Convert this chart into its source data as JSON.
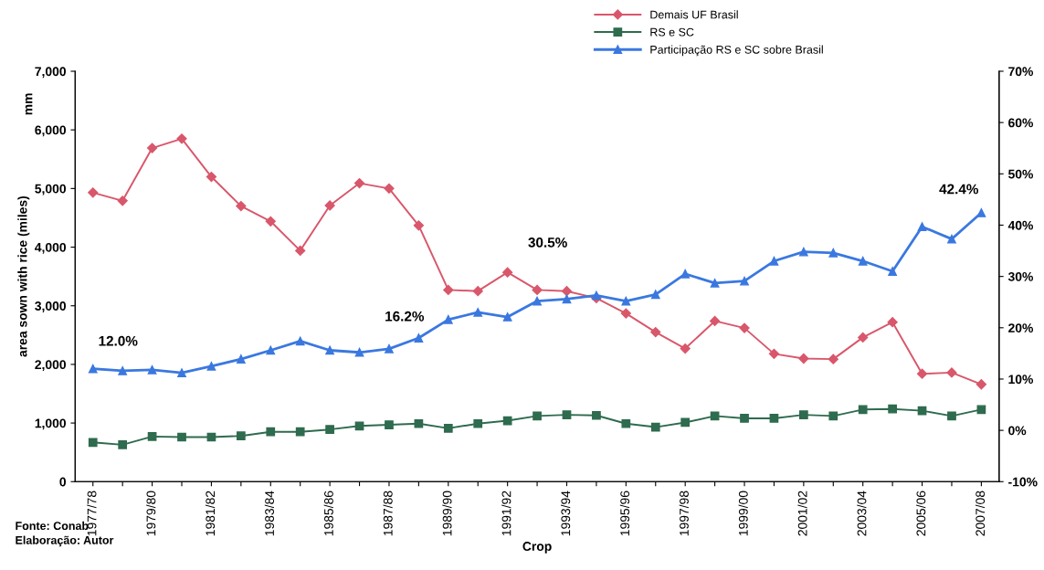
{
  "chart_data": {
    "type": "line",
    "xlabel": "Crop",
    "ylabel": "area sown with rice (miles)",
    "categories": [
      "1977/78",
      null,
      "1979/80",
      null,
      "1981/82",
      null,
      "1983/84",
      null,
      "1985/86",
      null,
      "1987/88",
      null,
      "1989/90",
      null,
      "1991/92",
      null,
      "1993/94",
      null,
      "1995/96",
      null,
      "1997/98",
      null,
      "1999/00",
      null,
      "2001/02",
      null,
      "2003/04",
      null,
      "2005/06",
      null,
      "2007/08"
    ],
    "series": [
      {
        "name": "Demais UF Brasil",
        "color": "#d9576b",
        "marker": "diamond",
        "values": [
          4930,
          4790,
          5690,
          5850,
          5200,
          4700,
          4440,
          3940,
          4710,
          5090,
          5000,
          4370,
          3270,
          3250,
          3570,
          3270,
          3250,
          3130,
          2870,
          2550,
          2270,
          2740,
          2620,
          2180,
          2100,
          2090,
          2460,
          2720,
          1840,
          1860,
          1660
        ]
      },
      {
        "name": "RS e SC",
        "color": "#2e6b4f",
        "marker": "square",
        "values": [
          670,
          630,
          770,
          760,
          760,
          780,
          850,
          850,
          890,
          950,
          970,
          990,
          910,
          990,
          1040,
          1120,
          1140,
          1130,
          990,
          930,
          1010,
          1120,
          1080,
          1080,
          1140,
          1120,
          1230,
          1240,
          1210,
          1120,
          1230
        ]
      },
      {
        "name": "Participação RS e SC sobre Brasil",
        "color": "#3a78e0",
        "marker": "triangle",
        "axis": "y2",
        "values": [
          12.0,
          11.6,
          11.8,
          11.2,
          12.5,
          13.9,
          15.6,
          17.4,
          15.6,
          15.2,
          15.9,
          18.0,
          21.6,
          23.0,
          22.1,
          25.2,
          25.6,
          26.3,
          25.2,
          26.5,
          30.5,
          28.7,
          29.1,
          33.0,
          34.8,
          34.6,
          33.0,
          31.0,
          39.7,
          37.3,
          42.4
        ]
      }
    ],
    "ylim": [
      0,
      7000
    ],
    "yticks": [
      0,
      {
        "value": 1000,
        "label": "1,000"
      },
      {
        "value": 2000,
        "label": "2,000"
      },
      {
        "value": 3000,
        "label": "3,000"
      },
      {
        "value": 4000,
        "label": "4,000"
      },
      {
        "value": 5000,
        "label": "5,000"
      },
      {
        "value": 6000,
        "label": "6,000"
      },
      {
        "value": 7000,
        "label": "7,000"
      }
    ],
    "y2lim": [
      -10,
      70
    ],
    "y2ticks": [
      {
        "value": -10,
        "label": "-10%"
      },
      {
        "value": 0,
        "label": "0%"
      },
      {
        "value": 10,
        "label": "10%"
      },
      {
        "value": 20,
        "label": "20%"
      },
      {
        "value": 30,
        "label": "30%"
      },
      {
        "value": 40,
        "label": "40%"
      },
      {
        "value": 50,
        "label": "50%"
      },
      {
        "value": 60,
        "label": "60%"
      },
      {
        "value": 70,
        "label": "70%"
      }
    ],
    "grid": false,
    "legend": "top right",
    "annotations": [
      "12.0%",
      "16.2%",
      "30.5%",
      "42.4%",
      "mm",
      "Fonte: Conab",
      "Elaboração: Autor"
    ]
  }
}
